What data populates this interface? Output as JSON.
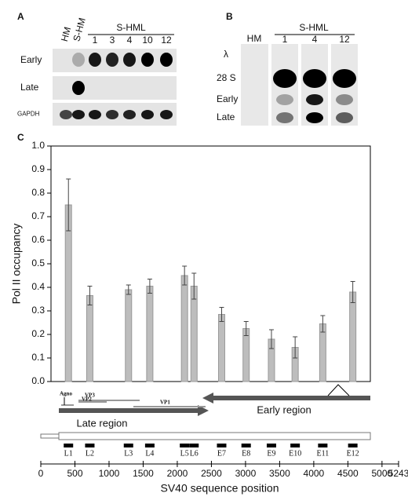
{
  "panel_a": {
    "label": "A",
    "lanes": [
      "HM",
      "S-HM"
    ],
    "group": "S-HML",
    "group_lanes": [
      "1",
      "3",
      "4",
      "10",
      "12"
    ],
    "rows": [
      "Early",
      "Late",
      "GAPDH"
    ]
  },
  "panel_b": {
    "label": "B",
    "lanes": [
      "HM"
    ],
    "group": "S-HML",
    "group_lanes": [
      "1",
      "4",
      "12"
    ],
    "rows": [
      "λ",
      "28 S",
      "Early",
      "Late"
    ]
  },
  "panel_c": {
    "label": "C"
  },
  "map": {
    "genes": [
      "Agno",
      "VP2",
      "VP3",
      "VP1"
    ],
    "late": "Late region",
    "early": "Early region"
  },
  "chart_data": {
    "type": "bar",
    "ylabel": "Pol II occupancy",
    "xlabel": "SV40 sequence position",
    "categories": [
      "L1",
      "L2",
      "L3",
      "L4",
      "L5",
      "L6",
      "E7",
      "E8",
      "E9",
      "E10",
      "E11",
      "E12"
    ],
    "x": [
      405,
      718,
      1285,
      1597,
      2106,
      2245,
      2650,
      3009,
      3380,
      3727,
      4132,
      4572
    ],
    "values": [
      0.75,
      0.365,
      0.39,
      0.405,
      0.45,
      0.405,
      0.285,
      0.225,
      0.18,
      0.145,
      0.245,
      0.38
    ],
    "errors": [
      0.11,
      0.04,
      0.02,
      0.03,
      0.04,
      0.055,
      0.03,
      0.03,
      0.04,
      0.045,
      0.035,
      0.045
    ],
    "color": "#bdbdbd",
    "ylim": [
      0,
      1
    ],
    "yticks": [
      {
        "value": 0,
        "label": "0.0"
      },
      0.1,
      0.2,
      0.3,
      0.4,
      0.5,
      0.6,
      0.7,
      0.8,
      0.9,
      {
        "value": 1,
        "label": "1.0"
      }
    ],
    "xlim": [
      0,
      5243
    ],
    "xticks": [
      0,
      500,
      1000,
      1500,
      2000,
      2500,
      3000,
      3500,
      4000,
      4500,
      5000,
      5243
    ]
  }
}
